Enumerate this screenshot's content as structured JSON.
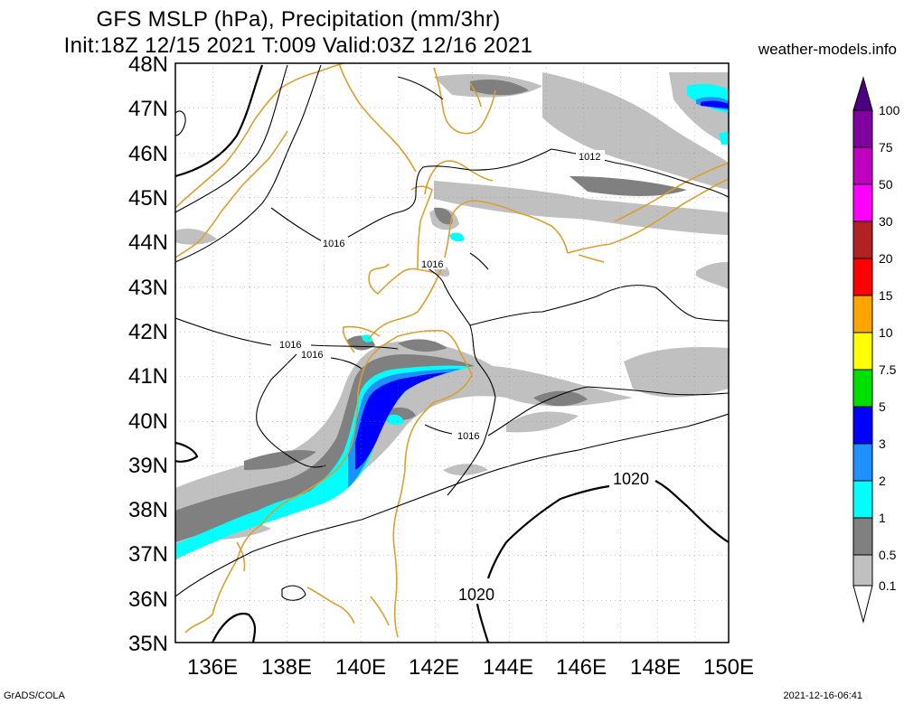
{
  "title_line1": "GFS MSLP (hPa), Precipitation (mm/3hr)",
  "title_line2": "Init:18Z 12/15 2021 T:009 Valid:03Z 12/16 2021",
  "site": "weather-models.info",
  "credit": "GrADS/COLA",
  "timestamp": "2021-12-16-06:41",
  "map": {
    "lon_range": [
      135,
      150
    ],
    "lat_range": [
      35,
      48
    ],
    "lon_ticks": [
      "136E",
      "138E",
      "140E",
      "142E",
      "144E",
      "146E",
      "148E",
      "150E"
    ],
    "lat_ticks": [
      "35N",
      "36N",
      "37N",
      "38N",
      "39N",
      "40N",
      "41N",
      "42N",
      "43N",
      "44N",
      "45N",
      "46N",
      "47N",
      "48N"
    ],
    "isobar_labels": [
      "1016",
      "1016",
      "1016",
      "1016",
      "1016",
      "1012",
      "1020",
      "1020"
    ]
  },
  "colorbar": {
    "labels": [
      "0.1",
      "0.5",
      "1",
      "2",
      "3",
      "5",
      "7.5",
      "10",
      "15",
      "20",
      "30",
      "50",
      "75",
      "100"
    ],
    "colors": [
      "#ffffff",
      "#c0c0c0",
      "#808080",
      "#00ffff",
      "#1e90ff",
      "#0000ff",
      "#00e000",
      "#ffff00",
      "#ffa500",
      "#ff0000",
      "#b22222",
      "#ff00ff",
      "#c000c0",
      "#8000a0",
      "#4b0082"
    ]
  }
}
